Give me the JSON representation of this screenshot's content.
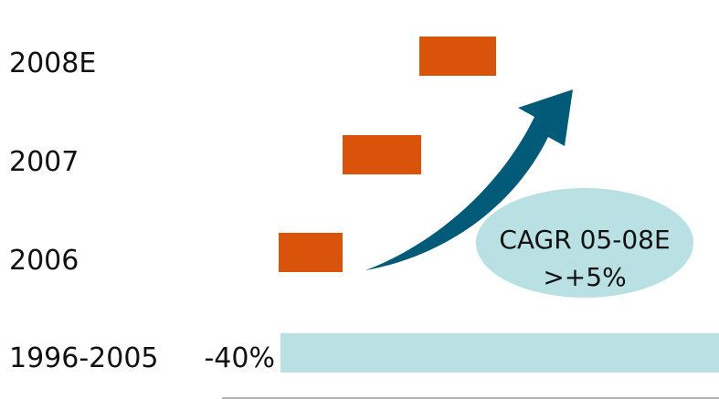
{
  "chart_data": {
    "type": "bar",
    "orientation": "horizontal",
    "categories": [
      "2008E",
      "2007",
      "2006",
      "1996-2005"
    ],
    "values": [
      null,
      null,
      null,
      -40
    ],
    "value_labels": [
      "",
      "",
      "",
      "-40%"
    ],
    "annotation": {
      "line1": "CAGR 05-08E",
      "line2": ">+5%"
    },
    "colors": {
      "positive_bar": "#d9530b",
      "negative_bar": "#b9e0e2",
      "arrow": "#005a78",
      "bubble": "#b9e0e2"
    }
  }
}
